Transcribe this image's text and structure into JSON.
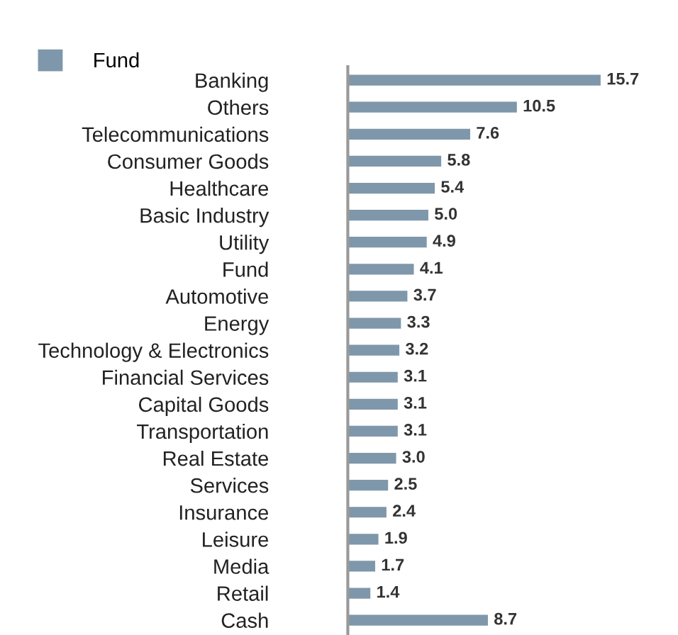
{
  "chart_data": {
    "type": "bar",
    "orientation": "horizontal",
    "categories": [
      "Banking",
      "Others",
      "Telecommunications",
      "Consumer Goods",
      "Healthcare",
      "Basic Industry",
      "Utility",
      "Fund",
      "Automotive",
      "Energy",
      "Technology & Electronics",
      "Financial Services",
      "Capital Goods",
      "Transportation",
      "Real Estate",
      "Services",
      "Insurance",
      "Leisure",
      "Media",
      "Retail",
      "Cash"
    ],
    "series": [
      {
        "name": "Fund",
        "color": "#7f97aa",
        "values": [
          15.7,
          10.5,
          7.6,
          5.8,
          5.4,
          5.0,
          4.9,
          4.1,
          3.7,
          3.3,
          3.2,
          3.1,
          3.1,
          3.1,
          3.0,
          2.5,
          2.4,
          1.9,
          1.7,
          1.4,
          8.7
        ],
        "value_labels": [
          "15.7",
          "10.5",
          "7.6",
          "5.8",
          "5.4",
          "5.0",
          "4.9",
          "4.1",
          "3.7",
          "3.3",
          "3.2",
          "3.1",
          "3.1",
          "3.1",
          "3.0",
          "2.5",
          "2.4",
          "1.9",
          "1.7",
          "1.4",
          "8.7"
        ]
      }
    ],
    "legend": "top left",
    "grid": false,
    "tick_labels": "y"
  }
}
